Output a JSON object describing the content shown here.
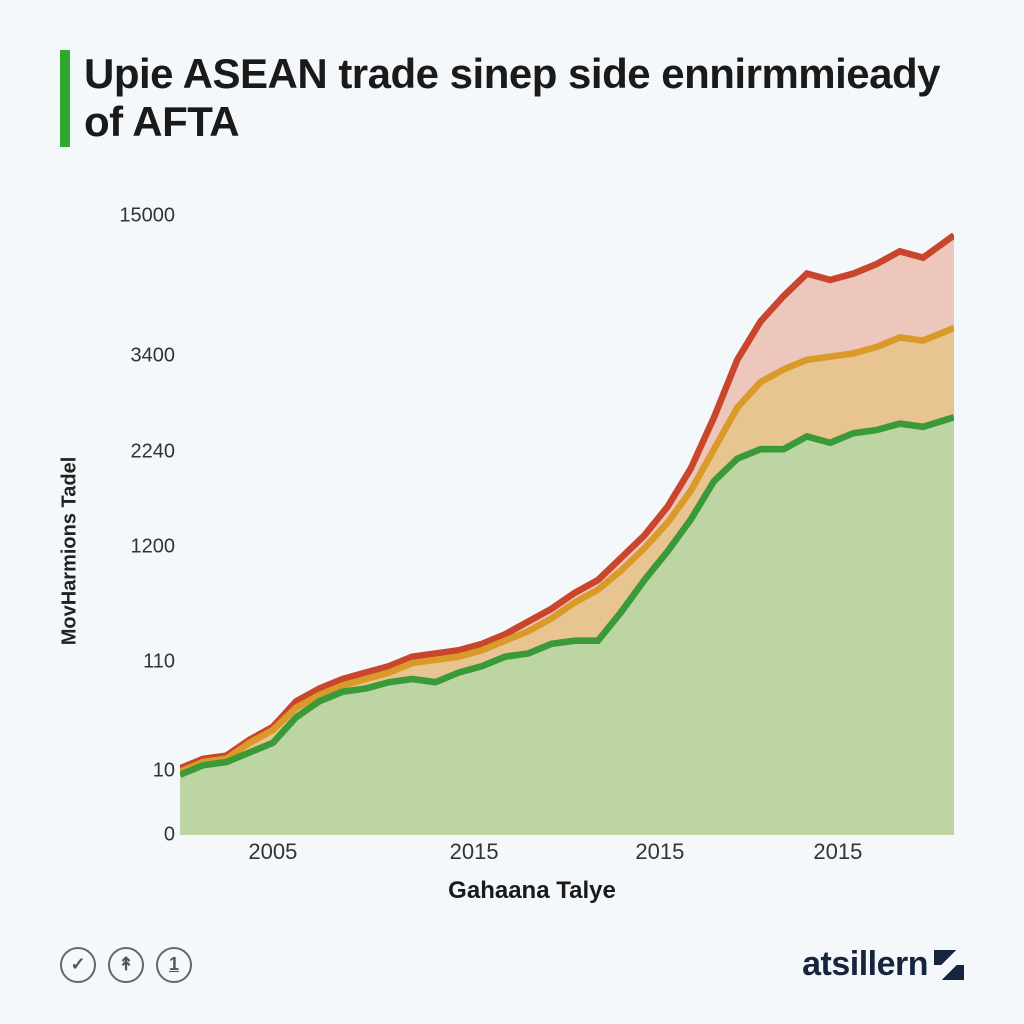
{
  "title": "Upie ASEAN trade sinep side ennirmmieady of AFTA",
  "chart": {
    "type": "area",
    "xlabel": "Gahaana Talye",
    "ylabel": "MovHarmions Tadel",
    "background_color": "#f5f8fb",
    "accent_color": "#2ea82e",
    "title_fontsize": 42,
    "label_fontsize": 22,
    "axis_color": "#333333",
    "yticks": [
      {
        "label": "0",
        "pos": 1.0
      },
      {
        "label": "10",
        "pos": 0.9
      },
      {
        "label": "110",
        "pos": 0.73
      },
      {
        "label": "1200",
        "pos": 0.55
      },
      {
        "label": "2240",
        "pos": 0.4
      },
      {
        "label": "3400",
        "pos": 0.25
      },
      {
        "label": "15000",
        "pos": 0.03
      }
    ],
    "xticks": [
      {
        "label": "2005",
        "pos": 0.12
      },
      {
        "label": "2015",
        "pos": 0.38
      },
      {
        "label": "2015",
        "pos": 0.62
      },
      {
        "label": "2015",
        "pos": 0.85
      }
    ],
    "series": [
      {
        "name": "series-red",
        "stroke": "#c9452b",
        "fill": "#e8a593",
        "fill_opacity": 0.6,
        "stroke_width": 3,
        "points": [
          [
            0.0,
            0.895
          ],
          [
            0.03,
            0.88
          ],
          [
            0.06,
            0.875
          ],
          [
            0.09,
            0.85
          ],
          [
            0.12,
            0.83
          ],
          [
            0.15,
            0.79
          ],
          [
            0.18,
            0.77
          ],
          [
            0.21,
            0.755
          ],
          [
            0.24,
            0.745
          ],
          [
            0.27,
            0.735
          ],
          [
            0.3,
            0.72
          ],
          [
            0.33,
            0.715
          ],
          [
            0.36,
            0.71
          ],
          [
            0.39,
            0.7
          ],
          [
            0.42,
            0.685
          ],
          [
            0.45,
            0.665
          ],
          [
            0.48,
            0.645
          ],
          [
            0.51,
            0.62
          ],
          [
            0.54,
            0.6
          ],
          [
            0.57,
            0.565
          ],
          [
            0.6,
            0.53
          ],
          [
            0.63,
            0.485
          ],
          [
            0.66,
            0.425
          ],
          [
            0.69,
            0.345
          ],
          [
            0.72,
            0.255
          ],
          [
            0.75,
            0.195
          ],
          [
            0.78,
            0.155
          ],
          [
            0.81,
            0.12
          ],
          [
            0.84,
            0.13
          ],
          [
            0.87,
            0.12
          ],
          [
            0.9,
            0.105
          ],
          [
            0.93,
            0.085
          ],
          [
            0.96,
            0.095
          ],
          [
            1.0,
            0.06
          ]
        ]
      },
      {
        "name": "series-orange",
        "stroke": "#d99a2a",
        "fill": "#e3c56b",
        "fill_opacity": 0.55,
        "stroke_width": 3,
        "points": [
          [
            0.0,
            0.9
          ],
          [
            0.03,
            0.885
          ],
          [
            0.06,
            0.88
          ],
          [
            0.09,
            0.855
          ],
          [
            0.12,
            0.835
          ],
          [
            0.15,
            0.8
          ],
          [
            0.18,
            0.78
          ],
          [
            0.21,
            0.765
          ],
          [
            0.24,
            0.755
          ],
          [
            0.27,
            0.745
          ],
          [
            0.3,
            0.73
          ],
          [
            0.33,
            0.725
          ],
          [
            0.36,
            0.72
          ],
          [
            0.39,
            0.71
          ],
          [
            0.42,
            0.695
          ],
          [
            0.45,
            0.68
          ],
          [
            0.48,
            0.66
          ],
          [
            0.51,
            0.635
          ],
          [
            0.54,
            0.615
          ],
          [
            0.57,
            0.585
          ],
          [
            0.6,
            0.55
          ],
          [
            0.63,
            0.51
          ],
          [
            0.66,
            0.46
          ],
          [
            0.69,
            0.395
          ],
          [
            0.72,
            0.33
          ],
          [
            0.75,
            0.29
          ],
          [
            0.78,
            0.27
          ],
          [
            0.81,
            0.255
          ],
          [
            0.84,
            0.25
          ],
          [
            0.87,
            0.245
          ],
          [
            0.9,
            0.235
          ],
          [
            0.93,
            0.22
          ],
          [
            0.96,
            0.225
          ],
          [
            1.0,
            0.205
          ]
        ]
      },
      {
        "name": "series-green",
        "stroke": "#3a9a3a",
        "fill": "#a9dca9",
        "fill_opacity": 0.7,
        "stroke_width": 3,
        "points": [
          [
            0.0,
            0.905
          ],
          [
            0.03,
            0.89
          ],
          [
            0.06,
            0.885
          ],
          [
            0.09,
            0.87
          ],
          [
            0.12,
            0.855
          ],
          [
            0.15,
            0.815
          ],
          [
            0.18,
            0.79
          ],
          [
            0.21,
            0.775
          ],
          [
            0.24,
            0.77
          ],
          [
            0.27,
            0.76
          ],
          [
            0.3,
            0.755
          ],
          [
            0.33,
            0.76
          ],
          [
            0.36,
            0.745
          ],
          [
            0.39,
            0.735
          ],
          [
            0.42,
            0.72
          ],
          [
            0.45,
            0.715
          ],
          [
            0.48,
            0.7
          ],
          [
            0.51,
            0.695
          ],
          [
            0.54,
            0.695
          ],
          [
            0.57,
            0.65
          ],
          [
            0.6,
            0.6
          ],
          [
            0.63,
            0.555
          ],
          [
            0.66,
            0.505
          ],
          [
            0.69,
            0.445
          ],
          [
            0.72,
            0.41
          ],
          [
            0.75,
            0.395
          ],
          [
            0.78,
            0.395
          ],
          [
            0.81,
            0.375
          ],
          [
            0.84,
            0.385
          ],
          [
            0.87,
            0.37
          ],
          [
            0.9,
            0.365
          ],
          [
            0.93,
            0.355
          ],
          [
            0.96,
            0.36
          ],
          [
            1.0,
            0.345
          ]
        ]
      }
    ]
  },
  "footer": {
    "icons": [
      "check",
      "share",
      "info"
    ],
    "brand": "atsillern"
  }
}
